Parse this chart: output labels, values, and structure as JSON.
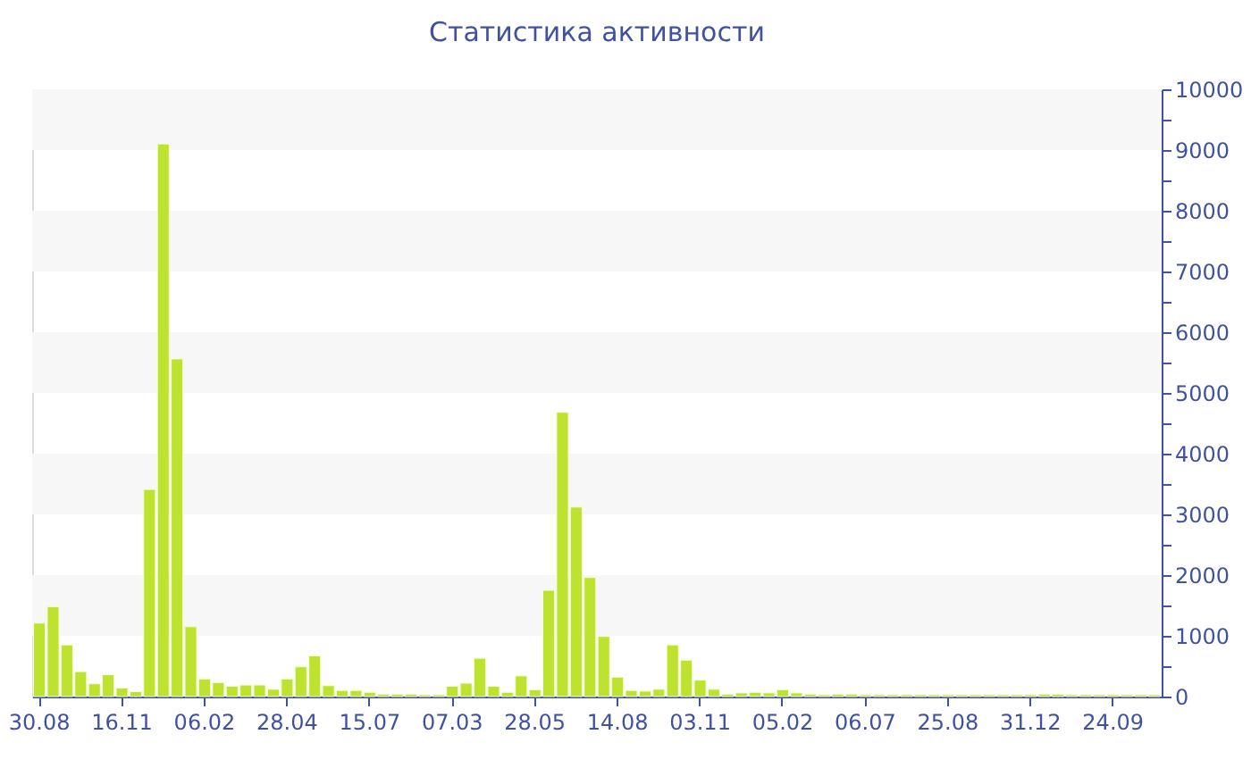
{
  "chart_data": {
    "type": "bar",
    "title": "Статистика активности",
    "categories": [
      "30.08",
      null,
      null,
      null,
      null,
      null,
      "16.11",
      null,
      null,
      null,
      null,
      null,
      "06.02",
      null,
      null,
      null,
      null,
      null,
      "28.04",
      null,
      null,
      null,
      null,
      null,
      "15.07",
      null,
      null,
      null,
      null,
      null,
      "07.03",
      null,
      null,
      null,
      null,
      null,
      "28.05",
      null,
      null,
      null,
      null,
      null,
      "14.08",
      null,
      null,
      null,
      null,
      null,
      "03.11",
      null,
      null,
      null,
      null,
      null,
      "05.02",
      null,
      null,
      null,
      null,
      null,
      "06.07",
      null,
      null,
      null,
      null,
      null,
      "25.08",
      null,
      null,
      null,
      null,
      null,
      "31.12",
      null,
      null,
      null,
      null,
      null,
      "24.09",
      null,
      null,
      null
    ],
    "values": [
      1210,
      1480,
      850,
      410,
      210,
      360,
      140,
      80,
      3410,
      9100,
      5560,
      1150,
      290,
      230,
      170,
      190,
      190,
      120,
      290,
      490,
      670,
      180,
      100,
      100,
      70,
      40,
      40,
      40,
      30,
      30,
      170,
      220,
      630,
      170,
      70,
      340,
      110,
      1750,
      4680,
      3120,
      1960,
      990,
      320,
      100,
      90,
      120,
      850,
      600,
      270,
      120,
      40,
      60,
      70,
      60,
      110,
      60,
      40,
      30,
      40,
      40,
      30,
      30,
      30,
      30,
      30,
      30,
      30,
      30,
      30,
      30,
      30,
      30,
      30,
      40,
      40,
      30,
      30,
      30,
      30,
      30,
      30,
      30
    ],
    "color": "#bde22f",
    "ylim": [
      0,
      10000
    ],
    "yticks": [
      0,
      {
        "value": 500,
        "label": null
      },
      1000,
      {
        "value": 1500,
        "label": null
      },
      2000,
      {
        "value": 2500,
        "label": null
      },
      3000,
      {
        "value": 3500,
        "label": null
      },
      4000,
      {
        "value": 4500,
        "label": null
      },
      5000,
      {
        "value": 5500,
        "label": null
      },
      6000,
      {
        "value": 6500,
        "label": null
      },
      7000,
      {
        "value": 7500,
        "label": null
      },
      8000,
      {
        "value": 8500,
        "label": null
      },
      9000,
      {
        "value": 9500,
        "label": null
      },
      10000
    ],
    "bands": [
      {
        "axis": "y",
        "from": 1000,
        "to": 2000,
        "color": "#f7f7f7"
      },
      {
        "axis": "y",
        "from": 3000,
        "to": 4000,
        "color": "#f7f7f7"
      },
      {
        "axis": "y",
        "from": 5000,
        "to": 6000,
        "color": "#f7f7f7"
      },
      {
        "axis": "y",
        "from": 7000,
        "to": 8000,
        "color": "#f7f7f7"
      },
      {
        "axis": "y",
        "from": 9000,
        "to": 10000,
        "color": "#f7f7f7"
      }
    ]
  }
}
